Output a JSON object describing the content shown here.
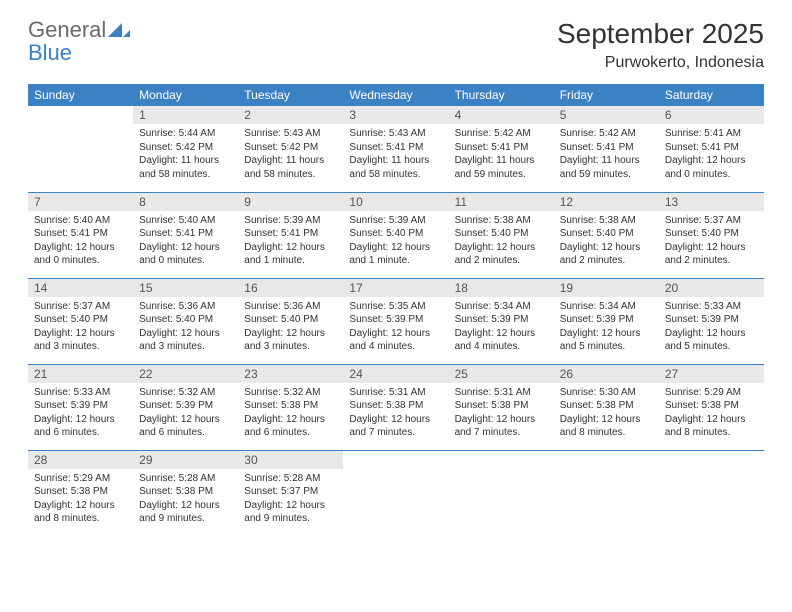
{
  "logo": {
    "word1": "General",
    "word2": "Blue"
  },
  "colors": {
    "brand_blue": "#3b82c4",
    "header_gray": "#6a6a6a",
    "day_bg": "#e8e8e8",
    "text": "#333333",
    "bg": "#ffffff"
  },
  "title": "September 2025",
  "location": "Purwokerto, Indonesia",
  "weekdays": [
    "Sunday",
    "Monday",
    "Tuesday",
    "Wednesday",
    "Thursday",
    "Friday",
    "Saturday"
  ],
  "grid": [
    [
      {
        "n": "",
        "sr": "",
        "ss": "",
        "dl": ""
      },
      {
        "n": "1",
        "sr": "5:44 AM",
        "ss": "5:42 PM",
        "dl": "11 hours and 58 minutes."
      },
      {
        "n": "2",
        "sr": "5:43 AM",
        "ss": "5:42 PM",
        "dl": "11 hours and 58 minutes."
      },
      {
        "n": "3",
        "sr": "5:43 AM",
        "ss": "5:41 PM",
        "dl": "11 hours and 58 minutes."
      },
      {
        "n": "4",
        "sr": "5:42 AM",
        "ss": "5:41 PM",
        "dl": "11 hours and 59 minutes."
      },
      {
        "n": "5",
        "sr": "5:42 AM",
        "ss": "5:41 PM",
        "dl": "11 hours and 59 minutes."
      },
      {
        "n": "6",
        "sr": "5:41 AM",
        "ss": "5:41 PM",
        "dl": "12 hours and 0 minutes."
      }
    ],
    [
      {
        "n": "7",
        "sr": "5:40 AM",
        "ss": "5:41 PM",
        "dl": "12 hours and 0 minutes."
      },
      {
        "n": "8",
        "sr": "5:40 AM",
        "ss": "5:41 PM",
        "dl": "12 hours and 0 minutes."
      },
      {
        "n": "9",
        "sr": "5:39 AM",
        "ss": "5:41 PM",
        "dl": "12 hours and 1 minute."
      },
      {
        "n": "10",
        "sr": "5:39 AM",
        "ss": "5:40 PM",
        "dl": "12 hours and 1 minute."
      },
      {
        "n": "11",
        "sr": "5:38 AM",
        "ss": "5:40 PM",
        "dl": "12 hours and 2 minutes."
      },
      {
        "n": "12",
        "sr": "5:38 AM",
        "ss": "5:40 PM",
        "dl": "12 hours and 2 minutes."
      },
      {
        "n": "13",
        "sr": "5:37 AM",
        "ss": "5:40 PM",
        "dl": "12 hours and 2 minutes."
      }
    ],
    [
      {
        "n": "14",
        "sr": "5:37 AM",
        "ss": "5:40 PM",
        "dl": "12 hours and 3 minutes."
      },
      {
        "n": "15",
        "sr": "5:36 AM",
        "ss": "5:40 PM",
        "dl": "12 hours and 3 minutes."
      },
      {
        "n": "16",
        "sr": "5:36 AM",
        "ss": "5:40 PM",
        "dl": "12 hours and 3 minutes."
      },
      {
        "n": "17",
        "sr": "5:35 AM",
        "ss": "5:39 PM",
        "dl": "12 hours and 4 minutes."
      },
      {
        "n": "18",
        "sr": "5:34 AM",
        "ss": "5:39 PM",
        "dl": "12 hours and 4 minutes."
      },
      {
        "n": "19",
        "sr": "5:34 AM",
        "ss": "5:39 PM",
        "dl": "12 hours and 5 minutes."
      },
      {
        "n": "20",
        "sr": "5:33 AM",
        "ss": "5:39 PM",
        "dl": "12 hours and 5 minutes."
      }
    ],
    [
      {
        "n": "21",
        "sr": "5:33 AM",
        "ss": "5:39 PM",
        "dl": "12 hours and 6 minutes."
      },
      {
        "n": "22",
        "sr": "5:32 AM",
        "ss": "5:39 PM",
        "dl": "12 hours and 6 minutes."
      },
      {
        "n": "23",
        "sr": "5:32 AM",
        "ss": "5:38 PM",
        "dl": "12 hours and 6 minutes."
      },
      {
        "n": "24",
        "sr": "5:31 AM",
        "ss": "5:38 PM",
        "dl": "12 hours and 7 minutes."
      },
      {
        "n": "25",
        "sr": "5:31 AM",
        "ss": "5:38 PM",
        "dl": "12 hours and 7 minutes."
      },
      {
        "n": "26",
        "sr": "5:30 AM",
        "ss": "5:38 PM",
        "dl": "12 hours and 8 minutes."
      },
      {
        "n": "27",
        "sr": "5:29 AM",
        "ss": "5:38 PM",
        "dl": "12 hours and 8 minutes."
      }
    ],
    [
      {
        "n": "28",
        "sr": "5:29 AM",
        "ss": "5:38 PM",
        "dl": "12 hours and 8 minutes."
      },
      {
        "n": "29",
        "sr": "5:28 AM",
        "ss": "5:38 PM",
        "dl": "12 hours and 9 minutes."
      },
      {
        "n": "30",
        "sr": "5:28 AM",
        "ss": "5:37 PM",
        "dl": "12 hours and 9 minutes."
      },
      {
        "n": "",
        "sr": "",
        "ss": "",
        "dl": ""
      },
      {
        "n": "",
        "sr": "",
        "ss": "",
        "dl": ""
      },
      {
        "n": "",
        "sr": "",
        "ss": "",
        "dl": ""
      },
      {
        "n": "",
        "sr": "",
        "ss": "",
        "dl": ""
      }
    ]
  ],
  "labels": {
    "sunrise": "Sunrise:",
    "sunset": "Sunset:",
    "daylight": "Daylight:"
  }
}
